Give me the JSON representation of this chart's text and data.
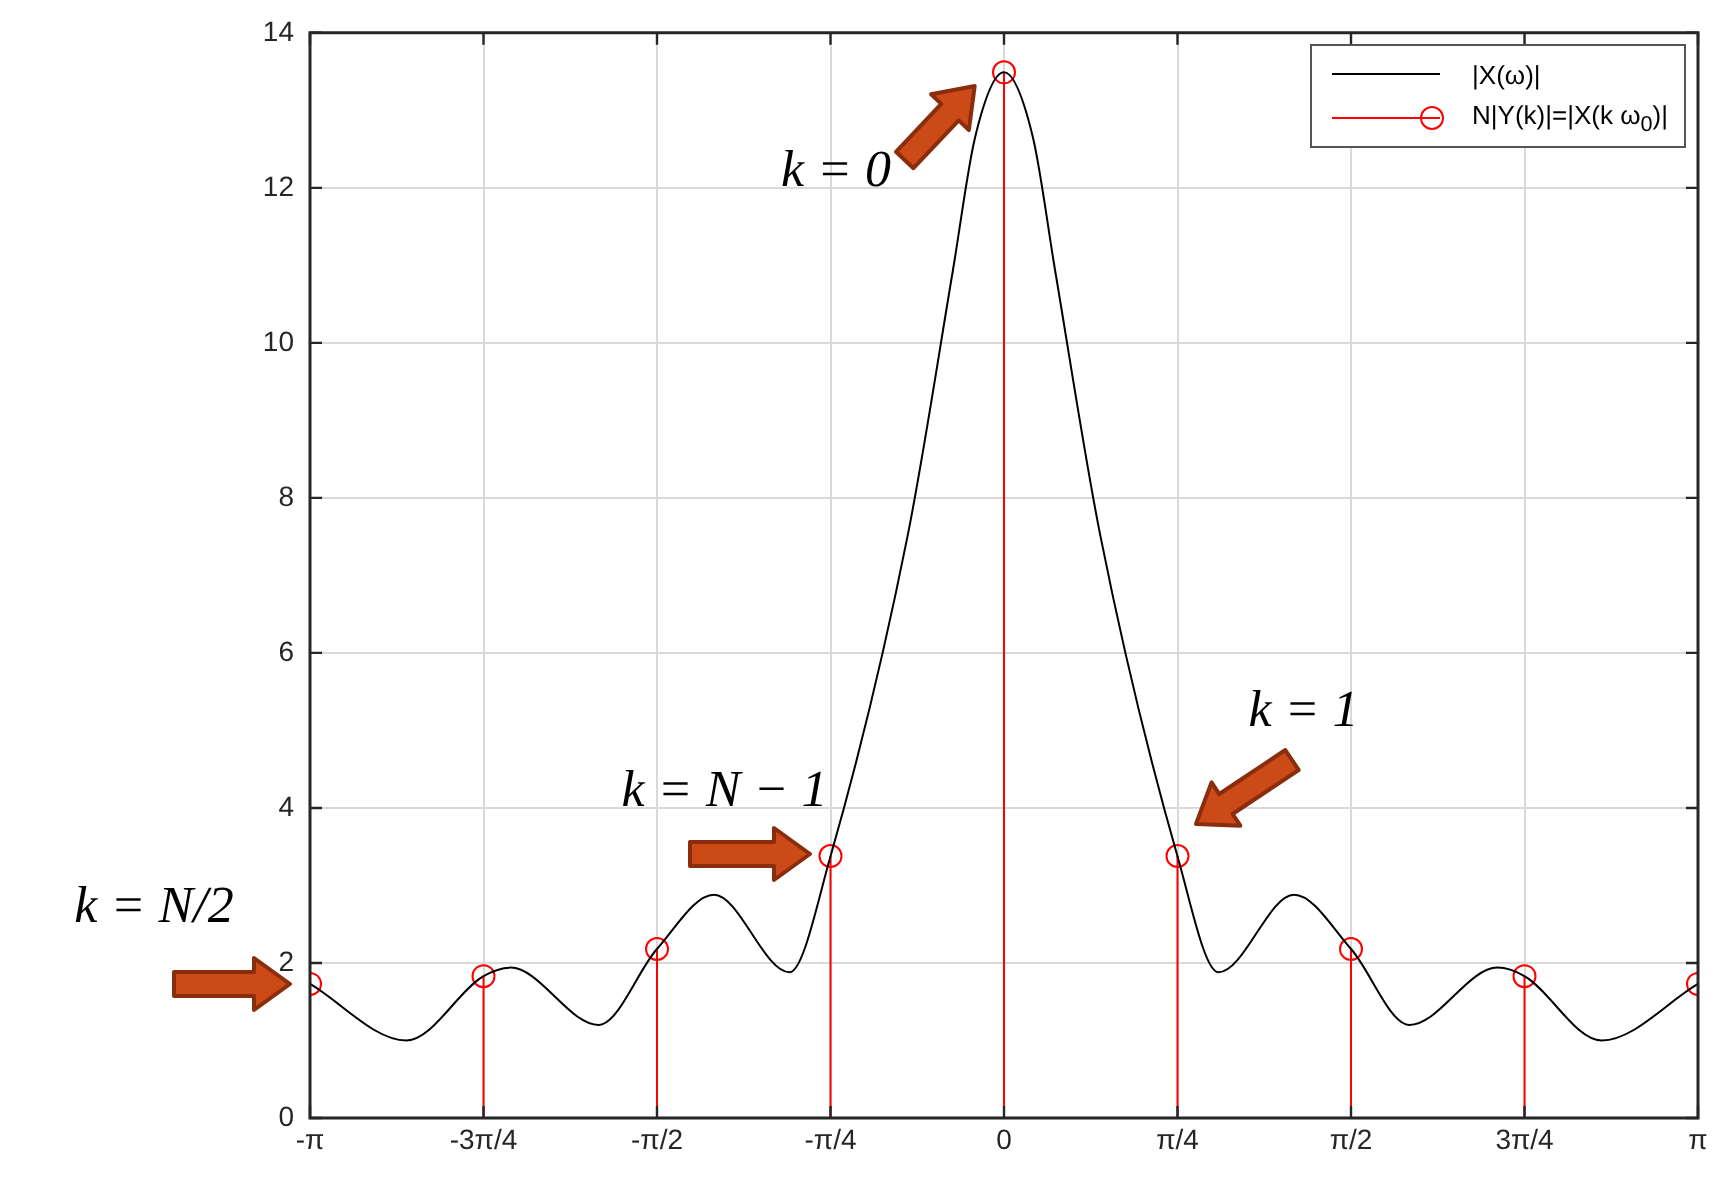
{
  "chart_data": {
    "type": "line",
    "xlim": [
      -3.1416,
      3.1416
    ],
    "xticks": [
      {
        "value": -3.1416,
        "label": "-π"
      },
      {
        "value": -2.3562,
        "label": "-3π/4"
      },
      {
        "value": -1.5708,
        "label": "-π/2"
      },
      {
        "value": -0.7854,
        "label": "-π/4"
      },
      0,
      {
        "value": 0.7854,
        "label": "π/4"
      },
      {
        "value": 1.5708,
        "label": "π/2"
      },
      {
        "value": 2.3562,
        "label": "3π/4"
      },
      {
        "value": 3.1416,
        "label": "π"
      }
    ],
    "ylim": [
      0,
      14
    ],
    "yticks": [
      0,
      2,
      4,
      6,
      8,
      10,
      12,
      14
    ],
    "grid": true,
    "legend": "top right",
    "series": [
      {
        "name": "|X(ω)|",
        "type": "line",
        "color": "#000000",
        "marker": "none",
        "x": [
          -3.1416,
          -2.705,
          -2.356,
          -2.234,
          -1.835,
          -1.571,
          -1.313,
          -0.971,
          -0.785,
          -0.437,
          -0.231,
          -0.131,
          0,
          0.131,
          0.231,
          0.437,
          0.785,
          0.971,
          1.313,
          1.571,
          1.835,
          2.234,
          2.356,
          2.705,
          3.1416
        ],
        "values": [
          1.73,
          1.0,
          1.83,
          1.94,
          1.2,
          2.18,
          2.88,
          1.88,
          3.38,
          7.5,
          10.94,
          12.65,
          13.49,
          12.65,
          10.94,
          7.5,
          3.38,
          1.88,
          2.88,
          2.18,
          1.2,
          1.94,
          1.83,
          1.0,
          1.73
        ]
      },
      {
        "name": "N|Y(k)|=|X(k ω$_{0}$)|",
        "type": "lollipop",
        "color": "#ff0000",
        "marker": "circle",
        "x": [
          -3.1416,
          -2.3562,
          -1.5708,
          -0.7854,
          0,
          0.7854,
          1.5708,
          2.3562,
          3.1416
        ],
        "values": [
          1.73,
          1.83,
          2.18,
          3.38,
          13.49,
          3.38,
          2.18,
          1.83,
          1.73
        ]
      }
    ],
    "annotations": [
      {
        "text": "k = 0",
        "x": 0,
        "y": 13.49
      },
      {
        "text": "k = 1",
        "x": 0.7854,
        "y": 3.38
      },
      {
        "text": "k = N − 1",
        "x": -0.7854,
        "y": 3.38
      },
      {
        "text": "k = N/2",
        "x": -3.1416,
        "y": 1.73
      }
    ]
  }
}
